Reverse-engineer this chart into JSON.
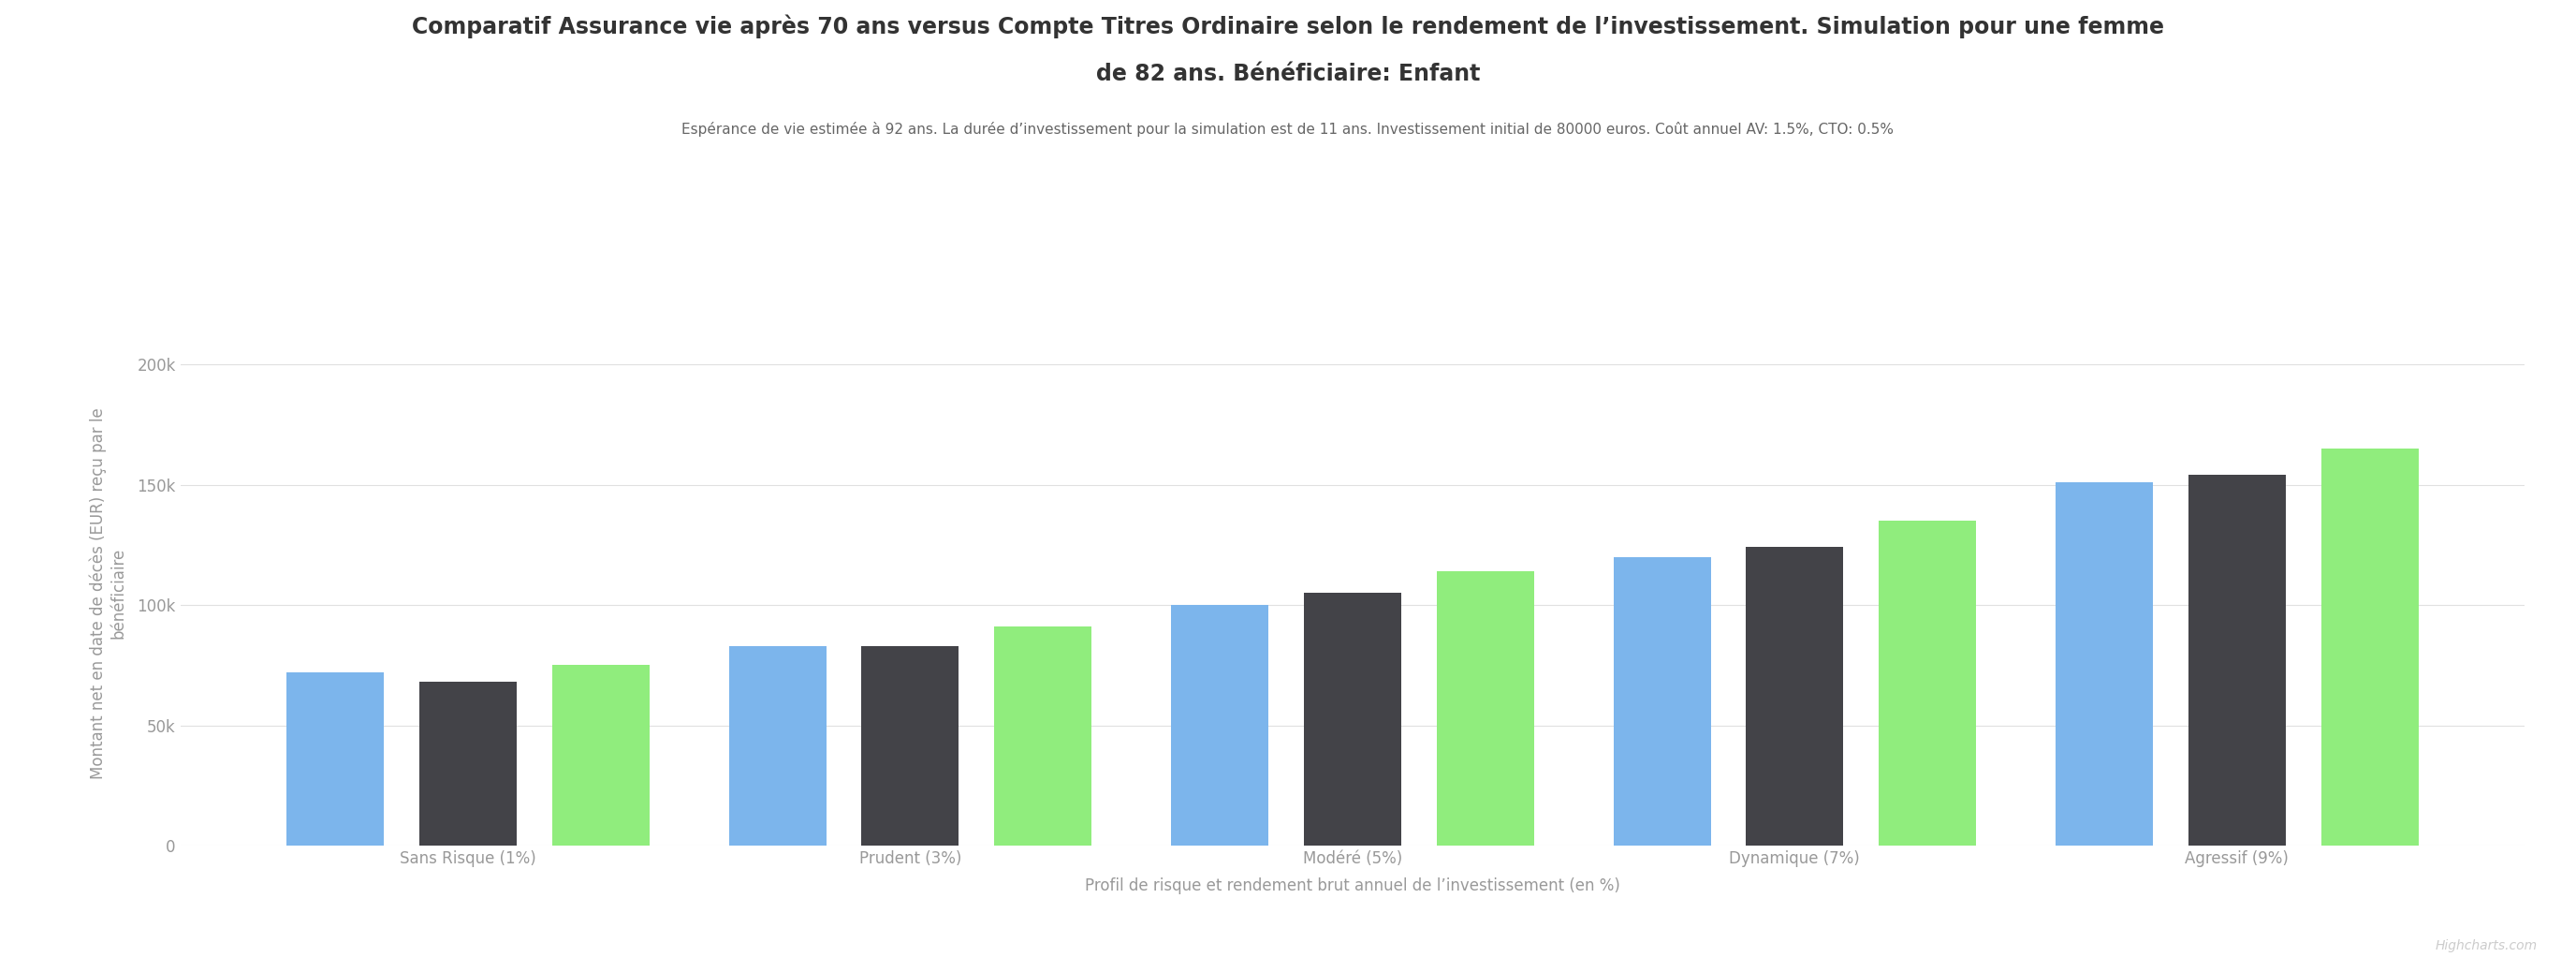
{
  "title_line1": "Comparatif Assurance vie après 70 ans versus Compte Titres Ordinaire selon le rendement de l’investissement. Simulation pour une femme",
  "title_line2": "de 82 ans. Bénéficiaire: Enfant",
  "subtitle": "Espérance de vie estimée à 92 ans. La durée d’investissement pour la simulation est de 11 ans. Investissement initial de 80000 euros. Coût annuel AV: 1.5%, CTO: 0.5%",
  "xlabel": "Profil de risque et rendement brut annuel de l’investissement (en %)",
  "ylabel": "Montant net en date de décès (EUR) reçu par le\nbénéficiaire",
  "categories": [
    "Sans Risque (1%)",
    "Prudent (3%)",
    "Modéré (5%)",
    "Dynamique (7%)",
    "Agressif (9%)"
  ],
  "series": {
    "Assurance vie": [
      72000,
      83000,
      100000,
      120000,
      151000
    ],
    "CTO": [
      68000,
      83000,
      105000,
      124000,
      154000
    ],
    "CTO PRU": [
      75000,
      91000,
      114000,
      135000,
      165000
    ]
  },
  "colors": {
    "Assurance vie": "#7cb5ec",
    "CTO": "#434348",
    "CTO PRU": "#90ed7d"
  },
  "ylim": [
    0,
    210000
  ],
  "yticks": [
    0,
    50000,
    100000,
    150000,
    200000
  ],
  "ytick_labels": [
    "0",
    "50k",
    "100k",
    "150k",
    "200k"
  ],
  "background_color": "#ffffff",
  "plot_background": "#ffffff",
  "grid_color": "#e0e0e0",
  "watermark": "Highcharts.com",
  "title_fontsize": 17,
  "subtitle_fontsize": 11,
  "axis_label_fontsize": 12,
  "tick_fontsize": 12,
  "legend_fontsize": 14,
  "bar_width": 0.22,
  "bar_gap": 0.08,
  "title_color": "#333333",
  "subtitle_color": "#666666",
  "axis_color": "#999999"
}
